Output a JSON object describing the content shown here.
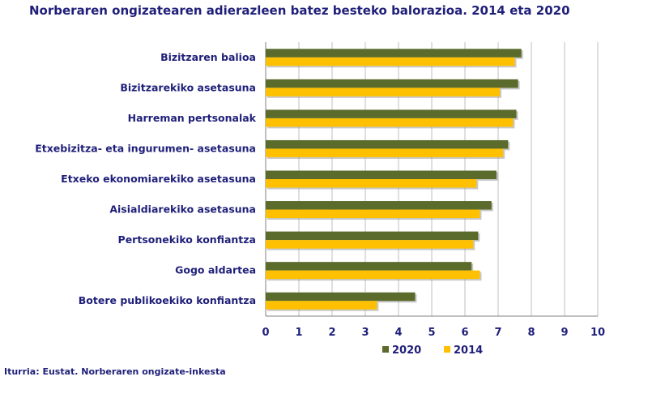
{
  "chart_data": {
    "type": "bar",
    "orientation": "horizontal",
    "title": "Norberaren ongizatearen adierazleen batez besteko balorazioa. 2014 eta 2020",
    "source": "Iturria: Eustat. Norberaren ongizate-inkesta",
    "categories": [
      "Bizitzaren balioa",
      "Bizitzarekiko asetasuna",
      "Harreman pertsonalak",
      "Etxebizitza- eta ingurumen- asetasuna",
      "Etxeko ekonomiarekiko asetasuna",
      "Aisialdiarekiko asetasuna",
      "Pertsonekiko konfiantza",
      "Gogo aldartea",
      "Botere publikoekiko konfiantza"
    ],
    "series": [
      {
        "name": "2020",
        "color": "#5a6b2c",
        "values": [
          7.7,
          7.6,
          7.55,
          7.3,
          6.95,
          6.8,
          6.4,
          6.2,
          4.5
        ]
      },
      {
        "name": "2014",
        "color": "#ffc000",
        "values": [
          7.5,
          7.05,
          7.45,
          7.15,
          6.35,
          6.45,
          6.25,
          6.45,
          3.35
        ]
      }
    ],
    "xlim": [
      0,
      10
    ],
    "xticks": [
      "0",
      "1",
      "2",
      "3",
      "4",
      "5",
      "6",
      "7",
      "8",
      "9",
      "10"
    ],
    "grid": true,
    "legend_position": "bottom"
  }
}
